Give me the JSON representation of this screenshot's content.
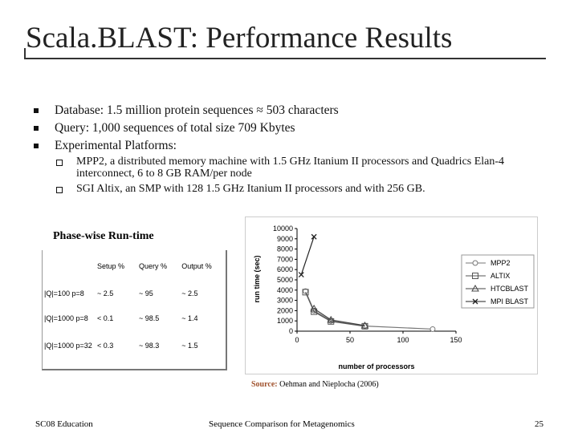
{
  "slide": {
    "title": "Scala.BLAST: Performance Results",
    "bullets": [
      "Database: 1.5 million protein sequences ≈ 503 characters",
      "Query: 1,000 sequences of total size 709 Kbytes",
      "Experimental Platforms:"
    ],
    "sub_bullets": [
      "MPP2, a distributed memory machine with 1.5 GHz Itanium II processors and Quadrics Elan-4 interconnect, 6 to 8 GB RAM/per node",
      "SGI Altix, an SMP with 128 1.5 GHz Itanium II processors and with 256 GB."
    ],
    "table_title": "Phase-wise Run-time",
    "source_label": "Source:",
    "source_text": "Oehman and Nieplocha (2006)",
    "footer_left": "SC08 Education",
    "footer_center": "Sequence Comparison for Metagenomics",
    "footer_right": "25"
  },
  "table": {
    "header": [
      "Setup %",
      "Query %",
      "Output %"
    ],
    "rows": [
      [
        "|Q|=100 p=8",
        "~ 2.5",
        "~ 95",
        "~ 2.5"
      ],
      [
        "|Q|=1000 p=8",
        "< 0.1",
        "~ 98.5",
        "~ 1.4"
      ],
      [
        "|Q|=1000 p=32",
        "< 0.3",
        "~ 98.3",
        "~ 1.5"
      ]
    ]
  },
  "chart_data": {
    "type": "line",
    "xlabel": "number of processors",
    "ylabel": "run time (sec)",
    "xlim": [
      0,
      150
    ],
    "xticks": [
      0,
      50,
      100,
      150
    ],
    "ylim": [
      0,
      10000
    ],
    "yticks": [
      0,
      1000,
      2000,
      3000,
      4000,
      5000,
      6000,
      7000,
      8000,
      9000,
      10000
    ],
    "series": [
      {
        "name": "MPP2",
        "color": "#777777",
        "marker": "circle",
        "x": [
          8,
          16,
          32,
          64,
          128
        ],
        "values": [
          3900,
          2000,
          1000,
          500,
          200
        ]
      },
      {
        "name": "ALTIX",
        "color": "#555555",
        "marker": "square",
        "x": [
          8,
          16,
          32,
          64
        ],
        "values": [
          3800,
          1900,
          950,
          480
        ]
      },
      {
        "name": "HTCBLAST",
        "color": "#444444",
        "marker": "triangle",
        "x": [
          16,
          32,
          64
        ],
        "values": [
          2200,
          1100,
          550
        ]
      },
      {
        "name": "MPI BLAST",
        "color": "#222222",
        "marker": "x",
        "x": [
          4,
          16
        ],
        "values": [
          5500,
          9200
        ]
      }
    ]
  }
}
